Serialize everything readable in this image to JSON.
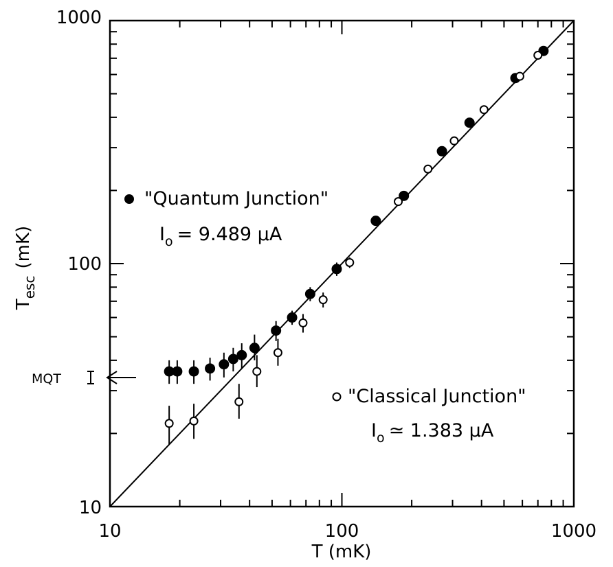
{
  "chart_data": {
    "type": "scatter",
    "x_scale": "log",
    "y_scale": "log",
    "xlim": [
      10,
      1000
    ],
    "ylim": [
      10,
      1000
    ],
    "x_ticks": [
      "10",
      "100",
      "1000"
    ],
    "y_ticks": [
      "10",
      "100",
      "1000"
    ],
    "xlabel": "T (mK)",
    "ylabel_main": "T",
    "ylabel_sub": "esc",
    "ylabel_unit": "(mK)",
    "grid": false,
    "reference_line": {
      "description": "T_esc = T",
      "points": [
        [
          10,
          10
        ],
        [
          1000,
          1000
        ]
      ]
    },
    "annotation": {
      "label": "MQT",
      "x": 10,
      "y": 33
    },
    "series": [
      {
        "name": "\"Quantum Junction\"",
        "marker": "filled-circle",
        "detail_prefix": "I",
        "detail_sub": "o",
        "detail_value": "= 9.489 μA",
        "points": [
          {
            "x": 18,
            "y": 36,
            "err": [
              32,
              40
            ]
          },
          {
            "x": 19.5,
            "y": 36,
            "err": [
              32,
              40
            ]
          },
          {
            "x": 23,
            "y": 36,
            "err": [
              32,
              40
            ]
          },
          {
            "x": 27,
            "y": 37,
            "err": [
              33,
              41
            ]
          },
          {
            "x": 31,
            "y": 38.5,
            "err": [
              34,
              43
            ]
          },
          {
            "x": 34,
            "y": 40.5,
            "err": [
              36,
              45
            ]
          },
          {
            "x": 37,
            "y": 42,
            "err": [
              37,
              47
            ]
          },
          {
            "x": 42,
            "y": 45,
            "err": [
              40,
              51
            ]
          },
          {
            "x": 52,
            "y": 53,
            "err": [
              48,
              58
            ]
          },
          {
            "x": 61,
            "y": 60,
            "err": [
              56,
              64
            ]
          },
          {
            "x": 73,
            "y": 75,
            "err": [
              70,
              80
            ]
          },
          {
            "x": 95,
            "y": 95,
            "err": [
              89,
              101
            ]
          },
          {
            "x": 140,
            "y": 150,
            "err": null
          },
          {
            "x": 185,
            "y": 190,
            "err": null
          },
          {
            "x": 270,
            "y": 290,
            "err": null
          },
          {
            "x": 355,
            "y": 380,
            "err": null
          },
          {
            "x": 560,
            "y": 580,
            "err": null
          },
          {
            "x": 740,
            "y": 750,
            "err": null
          }
        ]
      },
      {
        "name": "\"Classical Junction\"",
        "marker": "open-circle",
        "detail_prefix": "I",
        "detail_sub": "o",
        "detail_value": "≃ 1.383 μA",
        "points": [
          {
            "x": 18,
            "y": 22,
            "err": [
              18,
              26
            ]
          },
          {
            "x": 23,
            "y": 22.5,
            "err": [
              19,
              26.5
            ]
          },
          {
            "x": 36,
            "y": 27,
            "err": [
              23,
              32
            ]
          },
          {
            "x": 43,
            "y": 36,
            "err": [
              31,
              42
            ]
          },
          {
            "x": 53,
            "y": 43,
            "err": [
              38,
              49
            ]
          },
          {
            "x": 68,
            "y": 57,
            "err": [
              52,
              62
            ]
          },
          {
            "x": 83,
            "y": 71,
            "err": [
              66,
              76
            ]
          },
          {
            "x": 108,
            "y": 101,
            "err": [
              96,
              106
            ]
          },
          {
            "x": 175,
            "y": 180,
            "err": null
          },
          {
            "x": 235,
            "y": 245,
            "err": null
          },
          {
            "x": 305,
            "y": 320,
            "err": null
          },
          {
            "x": 410,
            "y": 430,
            "err": null
          },
          {
            "x": 585,
            "y": 590,
            "err": null
          },
          {
            "x": 700,
            "y": 720,
            "err": null
          }
        ]
      }
    ]
  }
}
